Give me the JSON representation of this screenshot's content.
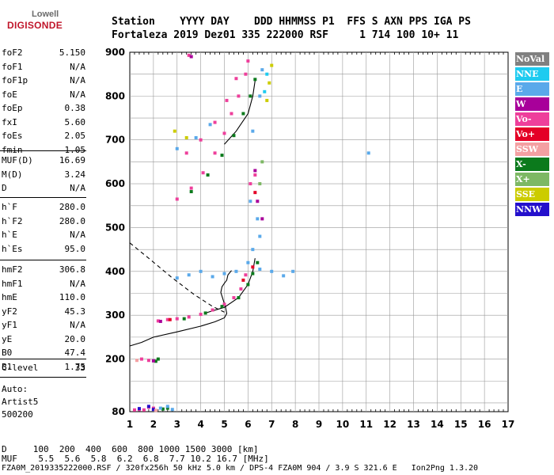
{
  "logo": {
    "top": "Lowell",
    "bottom": "DIGISONDE"
  },
  "header": {
    "line1": "Station    YYYY DAY    DDD HHMMSS P1  FFS S AXN PPS IGA PS",
    "line2": "Fortaleza 2019 Dez01 335 222000 RSF     1 714 100 10+ 11"
  },
  "params": {
    "group1": [
      {
        "key": "foF2",
        "value": "5.150"
      },
      {
        "key": "foF1",
        "value": "N/A"
      },
      {
        "key": "foF1p",
        "value": "N/A"
      },
      {
        "key": "foE",
        "value": "N/A"
      },
      {
        "key": "foEp",
        "value": "0.38"
      },
      {
        "key": "fxI",
        "value": "5.60"
      },
      {
        "key": "foEs",
        "value": "2.05"
      },
      {
        "key": "fmin",
        "value": "1.05"
      }
    ],
    "group2": [
      {
        "key": "MUF(D)",
        "value": "16.69"
      },
      {
        "key": "M(D)",
        "value": "3.24"
      },
      {
        "key": "D",
        "value": "N/A"
      }
    ],
    "group3": [
      {
        "key": "h`F",
        "value": "280.0"
      },
      {
        "key": "h`F2",
        "value": "280.0"
      },
      {
        "key": "h`E",
        "value": "N/A"
      },
      {
        "key": "h`Es",
        "value": "95.0"
      }
    ],
    "group4": [
      {
        "key": "hmF2",
        "value": "306.8"
      },
      {
        "key": "hmF1",
        "value": "N/A"
      },
      {
        "key": "hmE",
        "value": "110.0"
      },
      {
        "key": "yF2",
        "value": "45.3"
      },
      {
        "key": "yF1",
        "value": "N/A"
      },
      {
        "key": "yE",
        "value": "20.0"
      },
      {
        "key": "B0",
        "value": "47.4"
      },
      {
        "key": "B1",
        "value": "1.75"
      }
    ],
    "group5": [
      {
        "key": "C-level",
        "value": "33"
      }
    ]
  },
  "auto": [
    "Auto:",
    "Artist5",
    "500200"
  ],
  "legend": [
    {
      "label": "NoVal",
      "color": "#808080"
    },
    {
      "label": "NNE",
      "color": "#1ecbf0"
    },
    {
      "label": "E",
      "color": "#5aa9ea"
    },
    {
      "label": "W",
      "color": "#a8009a"
    },
    {
      "label": "Vo-",
      "color": "#ee3f9b"
    },
    {
      "label": "Vo+",
      "color": "#e40026"
    },
    {
      "label": "SSW",
      "color": "#f4a0a2"
    },
    {
      "label": "X-",
      "color": "#0b7a1c"
    },
    {
      "label": "X+",
      "color": "#7db864"
    },
    {
      "label": "SSE",
      "color": "#cccc00"
    },
    {
      "label": "NNW",
      "color": "#2410cc"
    }
  ],
  "footer": {
    "line1": "D     100  200  400  600  800 1000 1500 3000 [km]",
    "line2": "MUF    5.5  5.6  5.8  6.2  6.8  7.7 10.2 16.7 [MHz]",
    "line3": "FZA0M_2019335222000.RSF / 320fx256h 50 kHz 5.0 km / DPS-4 FZA0M 904 / 3.9 S 321.6 E   Ion2Png 1.3.20"
  },
  "chart_data": {
    "type": "scatter",
    "xlabel": "",
    "ylabel": "",
    "xlim": [
      1,
      17
    ],
    "ylim": [
      80,
      900
    ],
    "xticks": [
      1,
      2,
      3,
      4,
      5,
      6,
      7,
      8,
      9,
      10,
      11,
      12,
      13,
      14,
      15,
      16,
      17
    ],
    "yticks": [
      80,
      100,
      200,
      300,
      400,
      500,
      600,
      700,
      800,
      900
    ],
    "grid": true,
    "legend_position": "right",
    "series": [
      {
        "name": "Vo-",
        "color": "#ee3f9b",
        "points": [
          [
            1.2,
            84
          ],
          [
            1.4,
            85
          ],
          [
            1.6,
            84
          ],
          [
            1.8,
            90
          ],
          [
            2.0,
            88
          ],
          [
            1.5,
            200
          ],
          [
            1.8,
            197
          ],
          [
            2.2,
            287
          ],
          [
            2.6,
            290
          ],
          [
            3.0,
            292
          ],
          [
            3.5,
            296
          ],
          [
            4.0,
            302
          ],
          [
            4.5,
            312
          ],
          [
            5.0,
            325
          ],
          [
            5.4,
            340
          ],
          [
            5.7,
            360
          ],
          [
            5.9,
            392
          ],
          [
            3.0,
            565
          ],
          [
            3.6,
            590
          ],
          [
            4.1,
            625
          ],
          [
            4.6,
            670
          ],
          [
            5.0,
            715
          ],
          [
            5.3,
            760
          ],
          [
            5.6,
            800
          ],
          [
            5.9,
            850
          ],
          [
            6.0,
            880
          ],
          [
            3.4,
            670
          ],
          [
            4.0,
            700
          ],
          [
            4.6,
            740
          ],
          [
            5.1,
            790
          ],
          [
            5.5,
            840
          ],
          [
            6.1,
            600
          ],
          [
            6.3,
            620
          ],
          [
            3.5,
            893
          ]
        ]
      },
      {
        "name": "X-",
        "color": "#0b7a1c",
        "points": [
          [
            2.1,
            195
          ],
          [
            2.2,
            200
          ],
          [
            2.4,
            86
          ],
          [
            2.6,
            88
          ],
          [
            3.3,
            292
          ],
          [
            4.2,
            305
          ],
          [
            4.9,
            320
          ],
          [
            5.6,
            340
          ],
          [
            6.0,
            370
          ],
          [
            6.2,
            395
          ],
          [
            6.4,
            420
          ],
          [
            3.6,
            582
          ],
          [
            4.3,
            620
          ],
          [
            4.9,
            665
          ],
          [
            5.4,
            710
          ],
          [
            5.8,
            760
          ],
          [
            6.1,
            800
          ],
          [
            6.3,
            838
          ]
        ]
      },
      {
        "name": "E",
        "color": "#5aa9ea",
        "points": [
          [
            2.3,
            88
          ],
          [
            2.6,
            92
          ],
          [
            2.8,
            85
          ],
          [
            3.0,
            385
          ],
          [
            3.5,
            392
          ],
          [
            4.0,
            400
          ],
          [
            4.5,
            388
          ],
          [
            5.0,
            395
          ],
          [
            5.5,
            400
          ],
          [
            6.0,
            420
          ],
          [
            6.5,
            405
          ],
          [
            7.0,
            400
          ],
          [
            7.5,
            390
          ],
          [
            7.9,
            400
          ],
          [
            6.2,
            450
          ],
          [
            6.5,
            480
          ],
          [
            6.4,
            520
          ],
          [
            6.1,
            560
          ],
          [
            3.0,
            680
          ],
          [
            3.8,
            705
          ],
          [
            4.4,
            735
          ],
          [
            6.2,
            720
          ],
          [
            6.5,
            800
          ],
          [
            6.6,
            860
          ],
          [
            11.1,
            670
          ]
        ]
      },
      {
        "name": "W",
        "color": "#a8009a",
        "points": [
          [
            2.3,
            286
          ],
          [
            2.0,
            196
          ],
          [
            6.3,
            630
          ],
          [
            6.4,
            560
          ],
          [
            6.6,
            520
          ],
          [
            3.6,
            890
          ]
        ]
      },
      {
        "name": "Vo+",
        "color": "#e40026",
        "points": [
          [
            6.2,
            410
          ],
          [
            6.3,
            580
          ],
          [
            5.8,
            380
          ],
          [
            2.7,
            290
          ]
        ]
      },
      {
        "name": "NNW",
        "color": "#2410cc",
        "points": [
          [
            1.4,
            87
          ],
          [
            1.8,
            92
          ],
          [
            2.0,
            85
          ]
        ]
      },
      {
        "name": "SSE",
        "color": "#cccc00",
        "points": [
          [
            6.8,
            790
          ],
          [
            6.9,
            830
          ],
          [
            7.0,
            870
          ],
          [
            3.4,
            705
          ],
          [
            2.9,
            720
          ]
        ]
      },
      {
        "name": "X+",
        "color": "#7db864",
        "points": [
          [
            6.5,
            600
          ],
          [
            6.6,
            650
          ]
        ]
      },
      {
        "name": "SSW",
        "color": "#f4a0a2",
        "points": [
          [
            1.3,
            197
          ],
          [
            2.1,
            83
          ]
        ]
      },
      {
        "name": "NNE",
        "color": "#1ecbf0",
        "points": [
          [
            6.7,
            810
          ],
          [
            6.8,
            850
          ]
        ]
      }
    ],
    "curves": [
      {
        "name": "profile",
        "style": "solid",
        "points": [
          [
            1.0,
            230
          ],
          [
            1.5,
            238
          ],
          [
            2.0,
            250
          ],
          [
            3.0,
            262
          ],
          [
            4.0,
            275
          ],
          [
            4.6,
            285
          ],
          [
            5.0,
            294
          ],
          [
            5.1,
            304
          ],
          [
            5.05,
            318
          ],
          [
            4.95,
            335
          ],
          [
            4.85,
            352
          ],
          [
            4.9,
            365
          ],
          [
            5.0,
            373
          ],
          [
            5.1,
            380
          ],
          [
            5.15,
            392
          ],
          [
            5.3,
            402
          ]
        ]
      },
      {
        "name": "extrapolation",
        "style": "dashed",
        "points": [
          [
            1.0,
            465
          ],
          [
            1.8,
            430
          ],
          [
            2.8,
            385
          ],
          [
            3.7,
            348
          ],
          [
            4.5,
            320
          ],
          [
            5.0,
            307
          ]
        ]
      },
      {
        "name": "trace",
        "style": "solid",
        "points": [
          [
            4.2,
            305
          ],
          [
            5.0,
            318
          ],
          [
            5.6,
            340
          ],
          [
            6.0,
            370
          ],
          [
            6.2,
            400
          ],
          [
            6.3,
            430
          ]
        ]
      },
      {
        "name": "trace2",
        "style": "solid",
        "points": [
          [
            5.0,
            690
          ],
          [
            5.5,
            720
          ],
          [
            6.0,
            760
          ],
          [
            6.2,
            800
          ],
          [
            6.3,
            835
          ]
        ]
      }
    ]
  }
}
